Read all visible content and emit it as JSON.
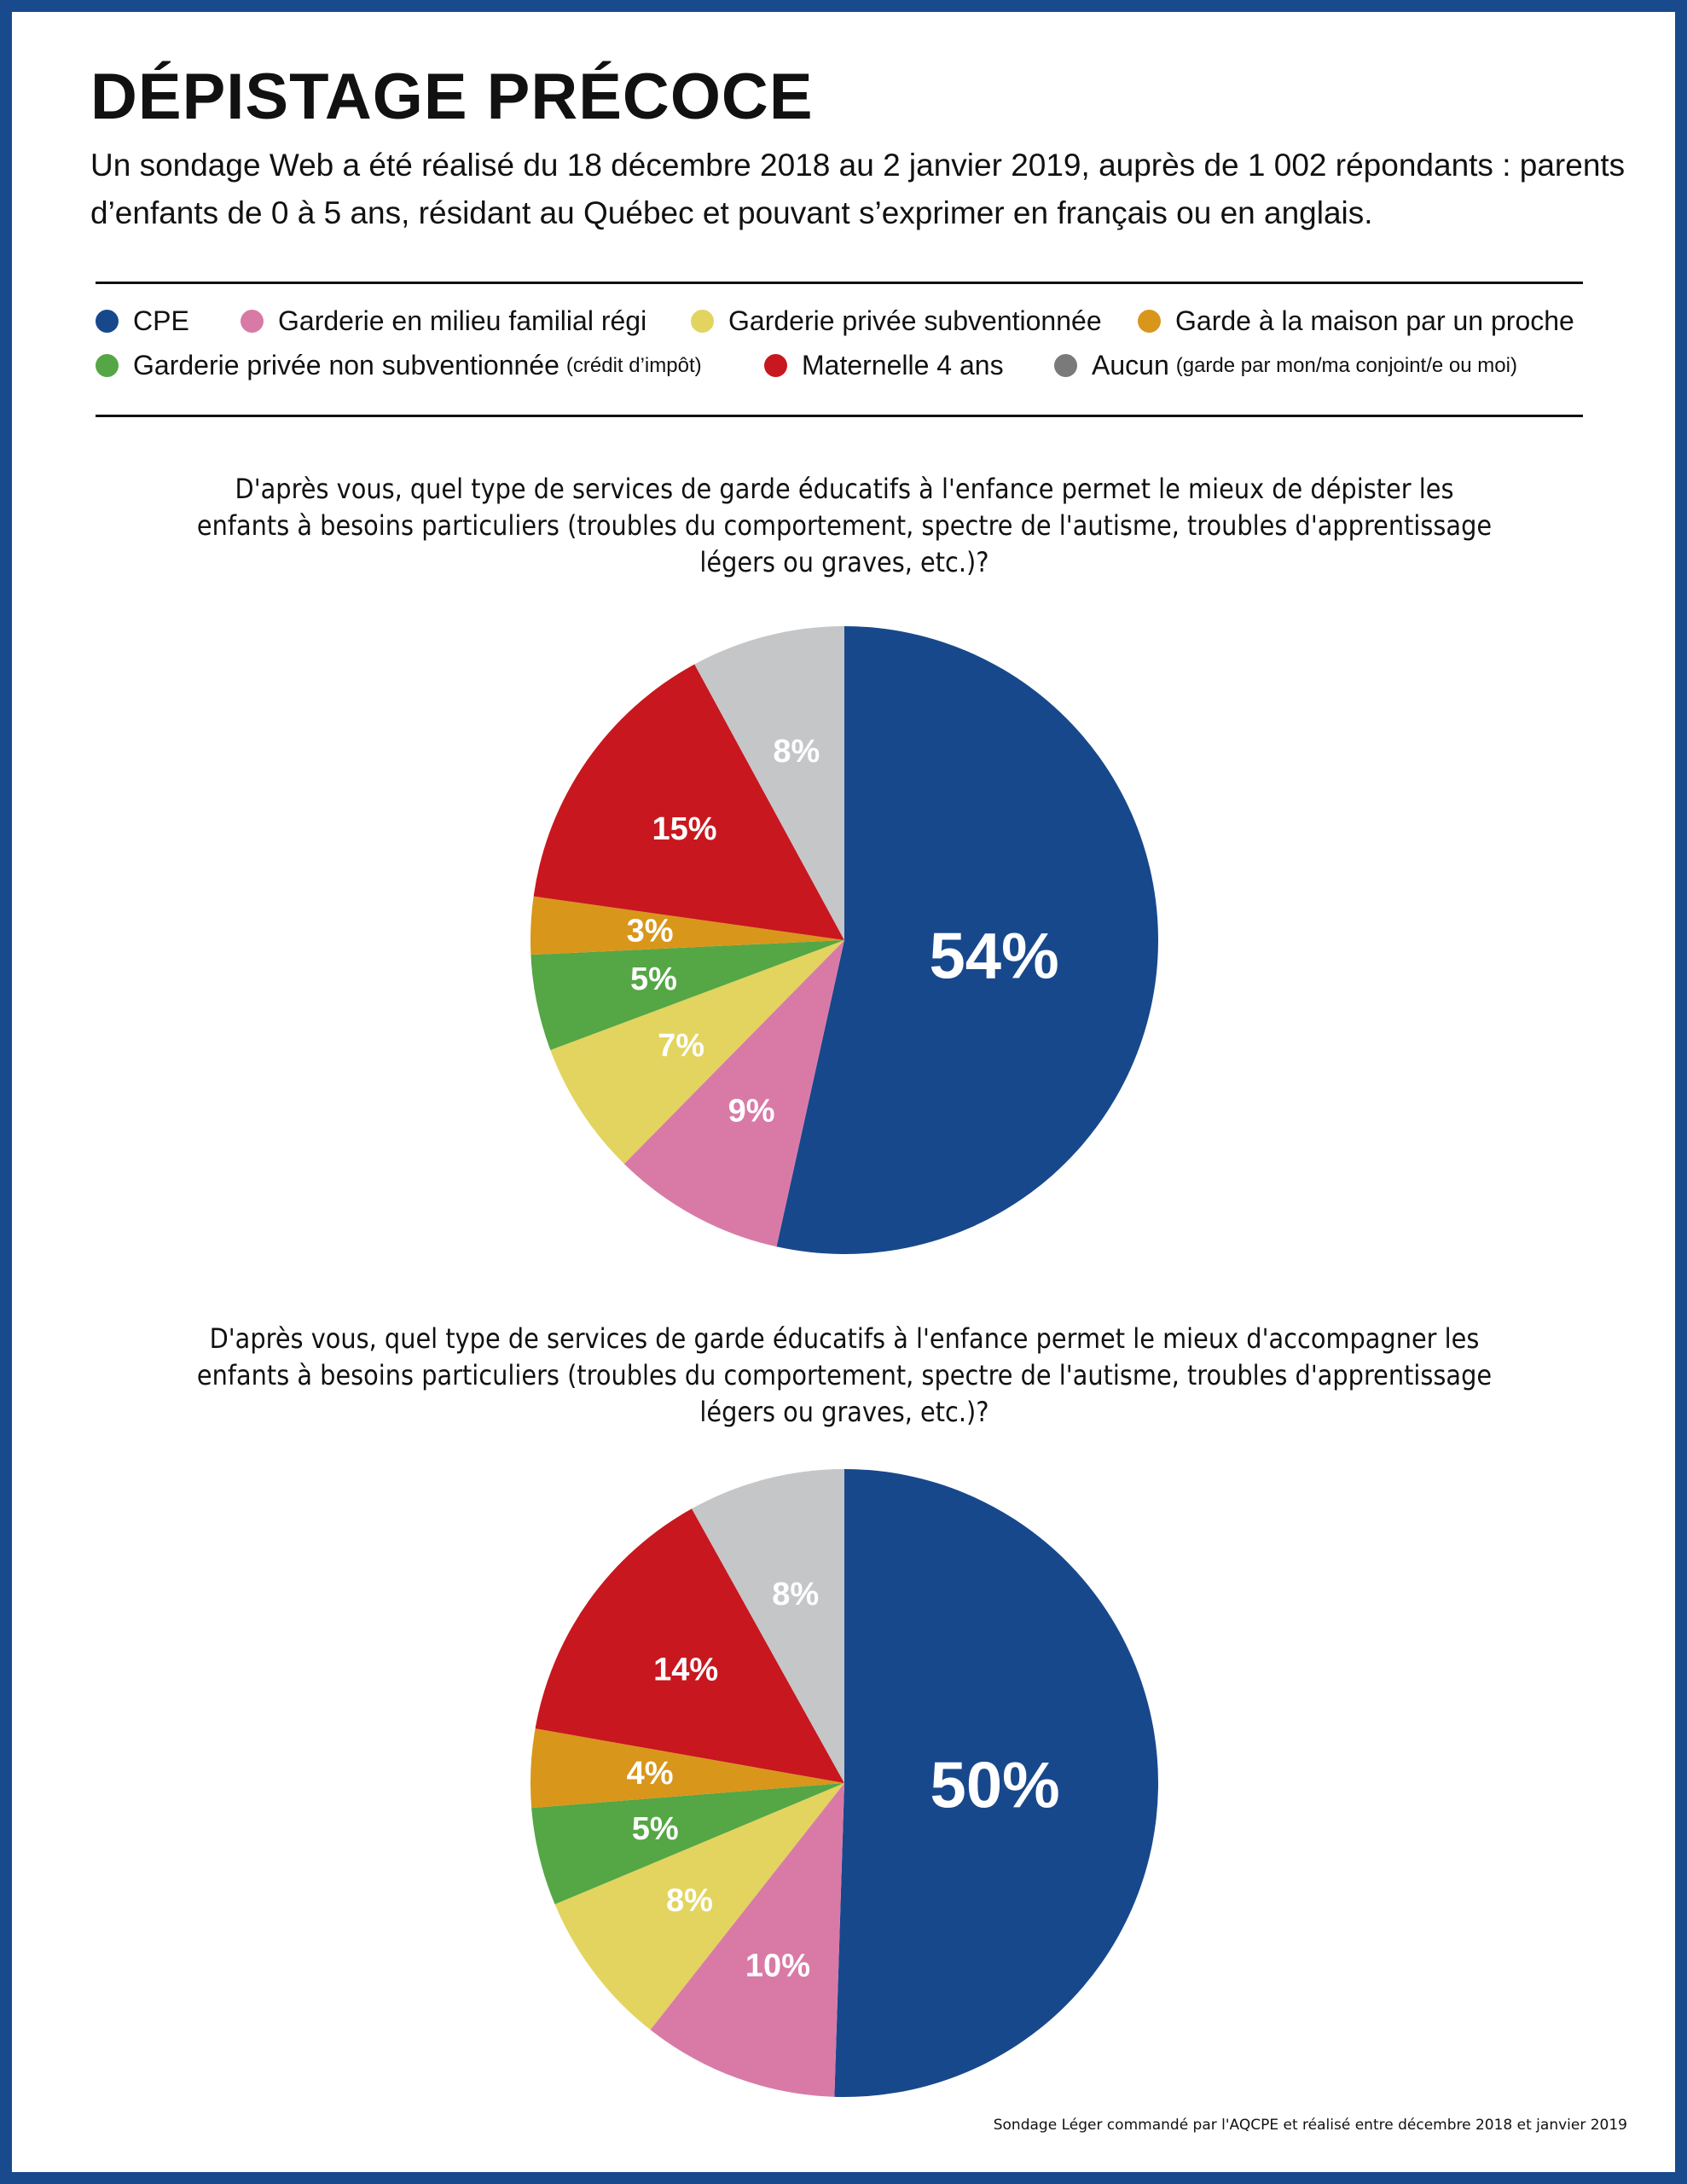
{
  "title": "DÉPISTAGE PRÉCOCE",
  "subtitle": "Un sondage Web a été réalisé du 18 décembre 2018 au 2 janvier 2019, auprès de 1 002 répondants : parents d’enfants de 0 à 5 ans, résidant au Québec et pouvant s’exprimer en français ou en anglais.",
  "legend": [
    {
      "label": "CPE",
      "note": "",
      "color": "#18488c"
    },
    {
      "label": "Garderie en milieu familial régi",
      "note": "",
      "color": "#d97aa6"
    },
    {
      "label": "Garderie privée subventionnée",
      "note": "",
      "color": "#e2d45f"
    },
    {
      "label": "Garde à la maison par un proche",
      "note": "",
      "color": "#d8961b"
    },
    {
      "label": "Garderie privée non subventionnée",
      "note": "(crédit d’impôt)",
      "color": "#55a645"
    },
    {
      "label": "Maternelle 4 ans",
      "note": "",
      "color": "#c8171f"
    },
    {
      "label": "Aucun",
      "note": "(garde par mon/ma conjoint/e ou moi)",
      "color": "#7a7a7a"
    }
  ],
  "chart_data": [
    {
      "type": "pie",
      "title": "D'après vous, quel type de services de garde éducatifs à l'enfance permet le mieux de dépister les enfants à besoins particuliers (troubles du comportement, spectre de l'autisme, troubles d'apprentissage légers ou graves, etc.)?",
      "categories": [
        "CPE",
        "Garderie en milieu familial régi",
        "Garderie privée subventionnée",
        "Garderie privée non subventionnée",
        "Garde à la maison par un proche",
        "Maternelle 4 ans",
        "Aucun"
      ],
      "values": [
        54,
        9,
        7,
        5,
        3,
        15,
        8
      ],
      "labels": [
        "54%",
        "9%",
        "7%",
        "5%",
        "3%",
        "15%",
        "8%"
      ],
      "colors": [
        "#18488c",
        "#d97aa6",
        "#e2d45f",
        "#55a645",
        "#d8961b",
        "#c8171f",
        "#c5c6c8"
      ]
    },
    {
      "type": "pie",
      "title": "D'après vous, quel type de services de garde éducatifs à l'enfance permet le mieux d'accompagner les enfants à besoins particuliers (troubles du comportement, spectre de l'autisme, troubles d'apprentissage légers ou graves, etc.)?",
      "categories": [
        "CPE",
        "Garderie en milieu familial régi",
        "Garderie privée subventionnée",
        "Garderie privée non subventionnée",
        "Garde à la maison par un proche",
        "Maternelle 4 ans",
        "Aucun"
      ],
      "values": [
        50,
        10,
        8,
        5,
        4,
        14,
        8
      ],
      "labels": [
        "50%",
        "10%",
        "8%",
        "5%",
        "4%",
        "14%",
        "8%"
      ],
      "colors": [
        "#18488c",
        "#d97aa6",
        "#e2d45f",
        "#55a645",
        "#d8961b",
        "#c8171f",
        "#c5c6c8"
      ]
    }
  ],
  "source": "Sondage Léger commandé par l'AQCPE et réalisé entre décembre 2018 et janvier 2019"
}
